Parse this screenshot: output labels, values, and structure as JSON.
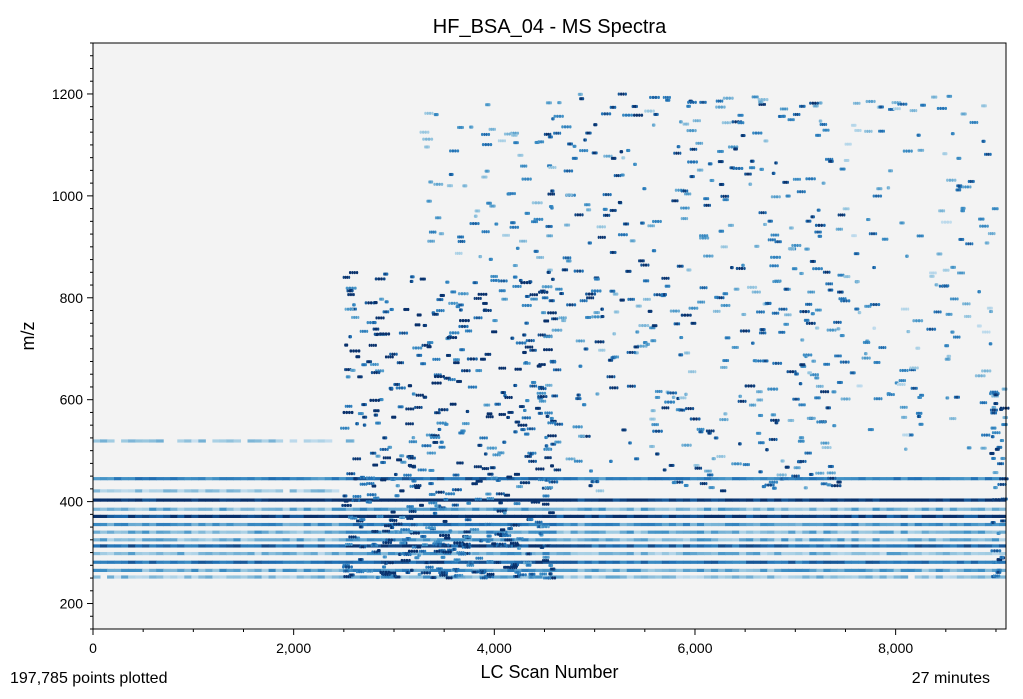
{
  "colors": {
    "background": "#f3f3f3",
    "axis": "#000000",
    "dark": "#08306b",
    "mid": "#2171b5",
    "light": "#9ecae1",
    "faint": "#deebf7"
  },
  "footer": {
    "points_plotted": "197,785 points plotted",
    "duration": "27 minutes"
  },
  "chart_data": {
    "type": "heatmap",
    "title": "HF_BSA_04 - MS Spectra",
    "xlabel": "LC Scan Number",
    "ylabel": "m/z",
    "xlim": [
      0,
      9100
    ],
    "ylim": [
      150,
      1300
    ],
    "x_ticks": [
      0,
      2000,
      4000,
      6000,
      8000
    ],
    "x_tick_labels": [
      "0",
      "2,000",
      "4,000",
      "6,000",
      "8,000"
    ],
    "y_ticks": [
      200,
      400,
      600,
      800,
      1000,
      1200
    ],
    "y_tick_labels": [
      "200",
      "400",
      "600",
      "800",
      "1000",
      "1200"
    ],
    "colormap": "Blues",
    "bands": [
      {
        "mz": 252,
        "x_start": 0,
        "x_end": 9100,
        "intensity": 0.25
      },
      {
        "mz": 265,
        "x_start": 0,
        "x_end": 9100,
        "intensity": 0.4
      },
      {
        "mz": 281,
        "x_start": 0,
        "x_end": 9100,
        "intensity": 0.7
      },
      {
        "mz": 298,
        "x_start": 0,
        "x_end": 9100,
        "intensity": 0.3
      },
      {
        "mz": 313,
        "x_start": 0,
        "x_end": 9100,
        "intensity": 0.75
      },
      {
        "mz": 325,
        "x_start": 0,
        "x_end": 9100,
        "intensity": 0.35
      },
      {
        "mz": 340,
        "x_start": 0,
        "x_end": 9100,
        "intensity": 0.35
      },
      {
        "mz": 355,
        "x_start": 0,
        "x_end": 9100,
        "intensity": 0.5
      },
      {
        "mz": 371,
        "x_start": 0,
        "x_end": 9100,
        "intensity": 0.95
      },
      {
        "mz": 385,
        "x_start": 0,
        "x_end": 9100,
        "intensity": 0.35
      },
      {
        "mz": 403,
        "x_start": 0,
        "x_end": 9100,
        "intensity": 1.0
      },
      {
        "mz": 421,
        "x_start": 0,
        "x_end": 2500,
        "intensity": 0.2
      },
      {
        "mz": 445,
        "x_start": 0,
        "x_end": 9100,
        "intensity": 0.6
      },
      {
        "mz": 519,
        "x_start": 0,
        "x_end": 2600,
        "intensity": 0.2
      }
    ],
    "peak_region": {
      "x_range": [
        2450,
        9100
      ],
      "mz_range": [
        250,
        1200
      ],
      "density": "high between scans 2,500 and 4,500; sparse above scan 7,500"
    }
  }
}
